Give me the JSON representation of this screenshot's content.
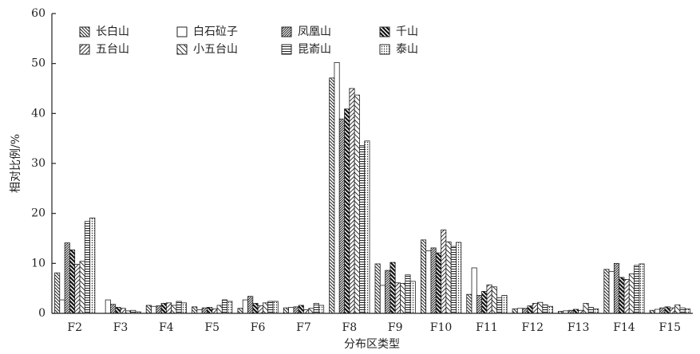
{
  "chart_data": {
    "type": "bar",
    "y_label": "相对比例/%",
    "x_label": "分布区类型",
    "categories": [
      "F2",
      "F3",
      "F4",
      "F5",
      "F6",
      "F7",
      "F8",
      "F9",
      "F10",
      "F11",
      "F12",
      "F13",
      "F14",
      "F15"
    ],
    "series": [
      {
        "name": "长白山",
        "color": "#222222",
        "pattern": "back-diagonal",
        "values": [
          8.1,
          0,
          1.6,
          1.3,
          1.0,
          1.1,
          47.1,
          9.9,
          14.7,
          3.8,
          0.9,
          0.4,
          8.8,
          0.6
        ]
      },
      {
        "name": "白石砬子",
        "color": "#222222",
        "pattern": "blank",
        "values": [
          2.7,
          2.7,
          1.4,
          0.7,
          2.7,
          1.2,
          50.2,
          5.6,
          12.5,
          9.1,
          1.0,
          0.5,
          8.4,
          0.8
        ]
      },
      {
        "name": "凤凰山",
        "color": "#222222",
        "pattern": "dense-diagonal",
        "values": [
          14.1,
          1.8,
          1.5,
          1.1,
          3.4,
          1.3,
          38.9,
          8.6,
          13.1,
          3.6,
          1.0,
          0.6,
          10.0,
          1.1
        ]
      },
      {
        "name": "千山",
        "color": "#222222",
        "pattern": "bold-diagonal",
        "values": [
          12.7,
          1.2,
          2.0,
          1.2,
          2.0,
          1.6,
          40.9,
          10.2,
          12.1,
          4.4,
          1.5,
          0.8,
          7.2,
          1.3
        ]
      },
      {
        "name": "五台山",
        "color": "#222222",
        "pattern": "forward-diagonal",
        "values": [
          9.8,
          1.0,
          2.1,
          0.9,
          1.5,
          0.7,
          45.0,
          6.1,
          16.7,
          5.7,
          2.0,
          0.6,
          6.8,
          1.1
        ]
      },
      {
        "name": "小五台山",
        "color": "#222222",
        "pattern": "back-sparse",
        "values": [
          10.4,
          0.5,
          1.6,
          1.6,
          2.1,
          1.0,
          43.7,
          6.0,
          14.3,
          5.3,
          2.2,
          2.0,
          7.9,
          1.7
        ]
      },
      {
        "name": "昆嵛山",
        "color": "#222222",
        "pattern": "horizontal",
        "values": [
          18.4,
          0.6,
          2.4,
          2.7,
          2.4,
          2.0,
          33.6,
          7.7,
          13.4,
          3.1,
          1.7,
          1.2,
          9.6,
          1.1
        ]
      },
      {
        "name": "泰山",
        "color": "#222222",
        "pattern": "dots",
        "values": [
          19.1,
          0.3,
          2.1,
          2.4,
          2.4,
          1.6,
          34.5,
          6.4,
          14.2,
          3.6,
          1.4,
          0.9,
          9.9,
          0.9
        ]
      }
    ],
    "ylim": [
      0,
      60
    ],
    "yticks": [
      0,
      10,
      20,
      30,
      40,
      50,
      60
    ],
    "legend": "upper-left"
  }
}
